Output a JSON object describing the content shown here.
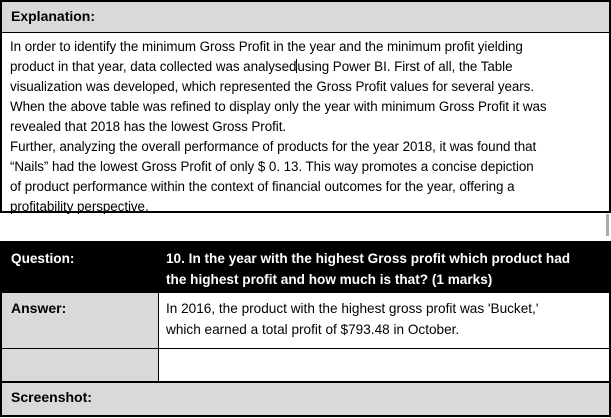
{
  "colors": {
    "cell_shade": "#d9d9d9",
    "question_row_bg": "#000000",
    "question_row_fg": "#ffffff",
    "table_border": "#000000",
    "page_bg": "#ffffff"
  },
  "explanation": {
    "header": "Explanation:",
    "line1": "In order to identify the minimum Gross Profit in the year and the minimum profit yielding",
    "line2_before_cursor": "product in that year, data collected was analysed",
    "line2_after_cursor": "using Power BI. First of all, the Table",
    "line3": "visualization was developed, which represented the Gross Profit values for several years.",
    "line4": "When the above table was refined to display only the year with minimum Gross Profit it was",
    "line5": "revealed that 2018 has the lowest Gross Profit.",
    "line6": "Further, analyzing the overall performance of products for the year 2018, it was found that",
    "line7": "“Nails” had the lowest Gross Profit of only $ 0. 13. This way promotes a concise depiction",
    "line8": "of product performance within the context of financial outcomes for the year, offering a",
    "line9": "profitability perspective."
  },
  "qa": {
    "question_label": "Question:",
    "question_line1": "10. In the year with the highest Gross profit which product had",
    "question_line2": "the highest profit and how much is that? (1 marks)",
    "answer_label": "Answer:",
    "answer_line1": "In 2016, the product with the highest gross profit was 'Bucket,'",
    "answer_line2": "which earned a total profit of $793.48 in October.",
    "screenshot_label": "Screenshot:"
  }
}
